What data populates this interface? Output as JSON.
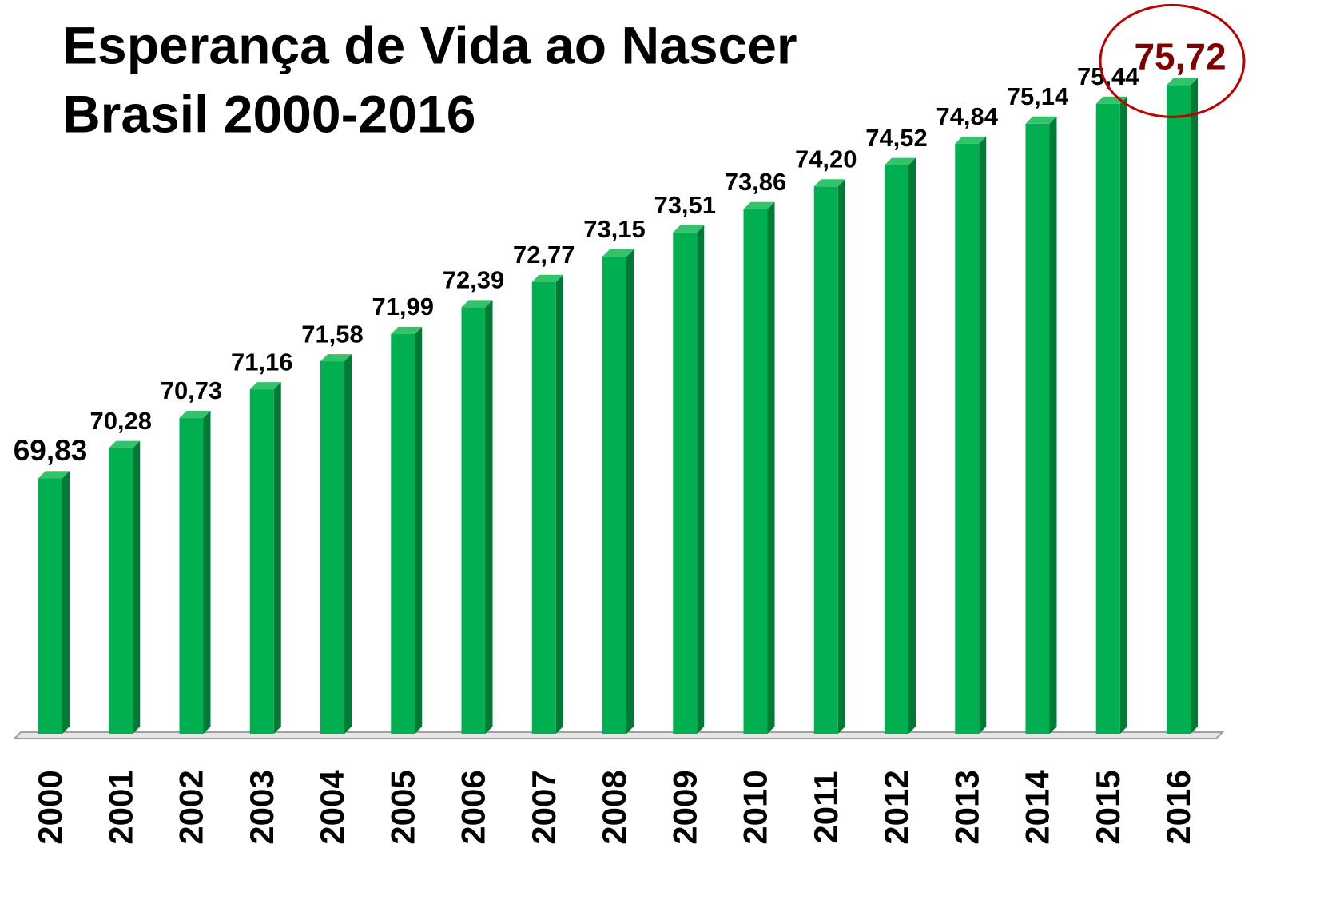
{
  "chart_data": {
    "type": "bar",
    "title": [
      "Esperança de Vida ao Nascer",
      "Brasil 2000-2016"
    ],
    "categories": [
      "2000",
      "2001",
      "2002",
      "2003",
      "2004",
      "2005",
      "2006",
      "2007",
      "2008",
      "2009",
      "2010",
      "2011",
      "2012",
      "2013",
      "2014",
      "2015",
      "2016"
    ],
    "values": [
      69.83,
      70.28,
      70.73,
      71.16,
      71.58,
      71.99,
      72.39,
      72.77,
      73.15,
      73.51,
      73.86,
      74.2,
      74.52,
      74.84,
      75.14,
      75.44,
      75.72
    ],
    "value_labels": [
      "69,83",
      "70,28",
      "70,73",
      "71,16",
      "71,58",
      "71,99",
      "72,39",
      "72,77",
      "73,15",
      "73,51",
      "73,86",
      "74,20",
      "74,52",
      "74,84",
      "75,14",
      "75,44",
      "75,72"
    ],
    "color": "#00b050",
    "ylim": [
      66,
      76
    ],
    "highlight": {
      "index": 16,
      "color": "#800000",
      "ring_color": "#c00000"
    }
  }
}
